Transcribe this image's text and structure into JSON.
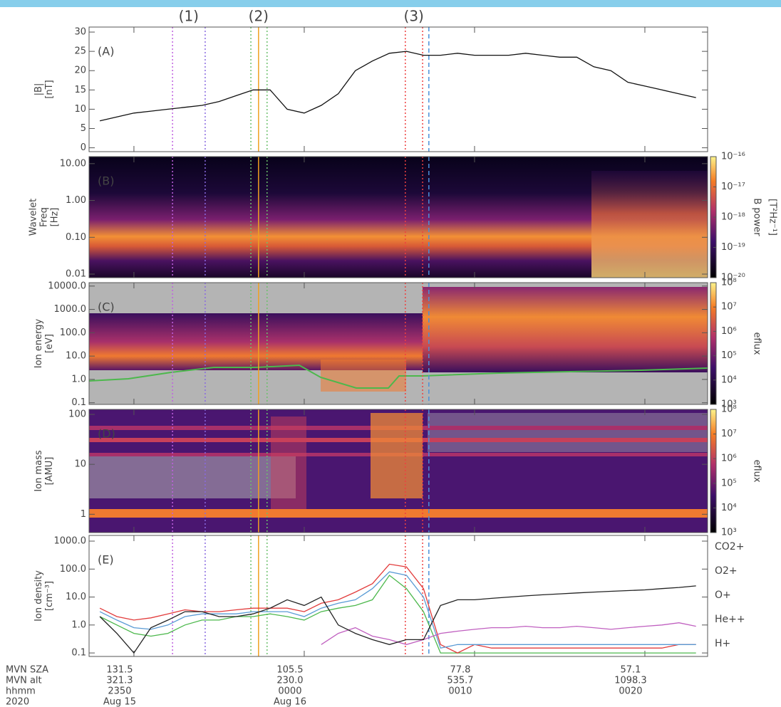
{
  "time_axis": {
    "xlim": [
      "2020-08-15T23:47:22",
      "2020-08-16T00:23:41"
    ],
    "row_labels": [
      "MVN SZA",
      "MVN alt",
      "hhmm",
      "2020"
    ],
    "xticks": [
      {
        "value": "2020-08-15T23:50",
        "sza": "131.5",
        "alt": "321.3",
        "hhmm": "2350",
        "date": "Aug 15"
      },
      {
        "value": "2020-08-16T00:00",
        "sza": "105.5",
        "alt": "230.0",
        "hhmm": "0000",
        "date": "Aug 16"
      },
      {
        "value": "2020-08-16T00:10",
        "sza": "77.8",
        "alt": "535.7",
        "hhmm": "0010"
      },
      {
        "value": "2020-08-16T00:20",
        "sza": "57.1",
        "alt": "1098.3",
        "hhmm": "0020"
      }
    ]
  },
  "events": {
    "labels": [
      {
        "label": "(1)",
        "color": "#c77ad8",
        "time": "2020-08-15T23:53:13"
      },
      {
        "label": "(2)",
        "color": "#6cc06c",
        "time": "2020-08-15T23:57:19"
      },
      {
        "label": "(3)",
        "color": "#ee5a5a",
        "time": "2020-08-16T00:06:26"
      }
    ],
    "lines": [
      {
        "time": "2020-08-15T23:52:16",
        "color": "#c060e0",
        "style": "dotted"
      },
      {
        "time": "2020-08-15T23:54:11",
        "color": "#8a6ae0",
        "style": "dotted"
      },
      {
        "time": "2020-08-15T23:56:52",
        "color": "#6cc06c",
        "style": "dotted"
      },
      {
        "time": "2020-08-15T23:57:19",
        "color": "#f0a020",
        "style": "solid"
      },
      {
        "time": "2020-08-15T23:57:49",
        "color": "#6cc06c",
        "style": "dotted"
      },
      {
        "time": "2020-08-16T00:05:56",
        "color": "#ee4040",
        "style": "dotted"
      },
      {
        "time": "2020-08-16T00:06:57",
        "color": "#ee4040",
        "style": "dotted"
      },
      {
        "time": "2020-08-16T00:07:19",
        "color": "#4a90d9",
        "style": "dashed"
      }
    ]
  },
  "chart_data": [
    {
      "type": "line",
      "panel": "(A)",
      "ylabel": [
        "|B|",
        "[nT]"
      ],
      "ylim": [
        -1,
        31.3
      ],
      "yticks": [
        0,
        5,
        10,
        15,
        20,
        25,
        30
      ],
      "log": false,
      "x": [
        "2020-08-15T23:48",
        "2020-08-15T23:49",
        "2020-08-15T23:50",
        "2020-08-15T23:51",
        "2020-08-15T23:52",
        "2020-08-15T23:53",
        "2020-08-15T23:54",
        "2020-08-15T23:55",
        "2020-08-15T23:56",
        "2020-08-15T23:57",
        "2020-08-15T23:58",
        "2020-08-15T23:59",
        "2020-08-16T00:00",
        "2020-08-16T00:01",
        "2020-08-16T00:02",
        "2020-08-16T00:03",
        "2020-08-16T00:04",
        "2020-08-16T00:05",
        "2020-08-16T00:06",
        "2020-08-16T00:07",
        "2020-08-16T00:08",
        "2020-08-16T00:09",
        "2020-08-16T00:10",
        "2020-08-16T00:11",
        "2020-08-16T00:12",
        "2020-08-16T00:13",
        "2020-08-16T00:14",
        "2020-08-16T00:15",
        "2020-08-16T00:16",
        "2020-08-16T00:17",
        "2020-08-16T00:18",
        "2020-08-16T00:19",
        "2020-08-16T00:20",
        "2020-08-16T00:21",
        "2020-08-16T00:22",
        "2020-08-16T00:23"
      ],
      "series": [
        {
          "color": "#111111",
          "values": [
            7,
            8,
            9,
            9.5,
            10,
            10.5,
            11,
            12,
            13.5,
            15,
            15,
            10,
            9,
            11,
            14,
            20,
            22.5,
            24.5,
            25,
            24,
            24,
            24.5,
            24,
            24,
            24,
            24.5,
            24,
            23.5,
            23.5,
            21,
            20,
            17,
            16,
            15,
            14,
            13
          ]
        }
      ]
    },
    {
      "type": "spectrogram",
      "panel": "(B)",
      "ylabel": [
        "Wavelet",
        "Freq",
        "[Hz]"
      ],
      "ylim": [
        0.008,
        15.5
      ],
      "log": true,
      "yticks": [
        {
          "value": 10,
          "label": "10.00"
        },
        {
          "value": 1,
          "label": "1.00"
        },
        {
          "value": 0.1,
          "label": "0.10"
        },
        {
          "value": 0.01,
          "label": "0.01"
        }
      ],
      "colorbar": {
        "label": [
          "B power",
          "[T²Hz⁻¹]"
        ],
        "lim": [
          1e-20,
          1e-16
        ],
        "ticks": [
          {
            "value": 1e-16,
            "label": "10⁻¹⁶"
          },
          {
            "value": 1e-17,
            "label": "10⁻¹⁷"
          },
          {
            "value": 1e-18,
            "label": "10⁻¹⁸"
          },
          {
            "value": 1e-19,
            "label": "10⁻¹⁹"
          },
          {
            "value": 1e-20,
            "label": "10⁻²⁰"
          }
        ]
      }
    },
    {
      "type": "spectrogram",
      "panel": "(C)",
      "ylabel": [
        "Ion energy",
        "[eV]"
      ],
      "ylim": [
        0.085,
        14000
      ],
      "log": true,
      "yticks": [
        {
          "value": 10000,
          "label": "10000.0"
        },
        {
          "value": 1000,
          "label": "1000.0"
        },
        {
          "value": 100,
          "label": "100.0"
        },
        {
          "value": 10,
          "label": "10.0"
        },
        {
          "value": 1,
          "label": "1.0"
        },
        {
          "value": 0.1,
          "label": "0.1"
        }
      ],
      "colorbar": {
        "label": [
          "eflux"
        ],
        "lim": [
          1000,
          100000000
        ],
        "ticks": [
          {
            "value": 100000000,
            "label": "10⁸"
          },
          {
            "value": 10000000,
            "label": "10⁷"
          },
          {
            "value": 1000000,
            "label": "10⁶"
          },
          {
            "value": 100000,
            "label": "10⁵"
          },
          {
            "value": 10000,
            "label": "10⁴"
          },
          {
            "value": 1000,
            "label": "10³"
          }
        ]
      }
    },
    {
      "type": "spectrogram",
      "panel": "(D)",
      "ylabel": [
        "Ion mass",
        "[AMU]"
      ],
      "ylim": [
        0.43,
        126
      ],
      "log": true,
      "yticks": [
        100,
        10,
        1
      ],
      "colorbar": {
        "label": [
          "eflux"
        ],
        "lim": [
          1000,
          100000000
        ],
        "ticks": [
          {
            "value": 100000000,
            "label": "10⁸"
          },
          {
            "value": 10000000,
            "label": "10⁷"
          },
          {
            "value": 1000000,
            "label": "10⁶"
          },
          {
            "value": 100000,
            "label": "10⁵"
          },
          {
            "value": 10000,
            "label": "10⁴"
          },
          {
            "value": 1000,
            "label": "10³"
          }
        ]
      }
    },
    {
      "type": "line",
      "panel": "(E)",
      "ylabel": [
        "Ion density",
        "[cm⁻³]"
      ],
      "ylim": [
        0.075,
        1600
      ],
      "log": true,
      "yticks": [
        {
          "value": 1000,
          "label": "1000.0"
        },
        {
          "value": 100,
          "label": "100.0"
        },
        {
          "value": 10,
          "label": "10.0"
        },
        {
          "value": 1,
          "label": "1.0"
        },
        {
          "value": 0.1,
          "label": "0.1"
        }
      ],
      "x": [
        "2020-08-15T23:48",
        "2020-08-15T23:49",
        "2020-08-15T23:50",
        "2020-08-15T23:51",
        "2020-08-15T23:52",
        "2020-08-15T23:53",
        "2020-08-15T23:54",
        "2020-08-15T23:55",
        "2020-08-15T23:56",
        "2020-08-15T23:57",
        "2020-08-15T23:58",
        "2020-08-15T23:59",
        "2020-08-16T00:00",
        "2020-08-16T00:01",
        "2020-08-16T00:02",
        "2020-08-16T00:03",
        "2020-08-16T00:04",
        "2020-08-16T00:05",
        "2020-08-16T00:06",
        "2020-08-16T00:07",
        "2020-08-16T00:08",
        "2020-08-16T00:09",
        "2020-08-16T00:10",
        "2020-08-16T00:11",
        "2020-08-16T00:12",
        "2020-08-16T00:13",
        "2020-08-16T00:14",
        "2020-08-16T00:15",
        "2020-08-16T00:16",
        "2020-08-16T00:17",
        "2020-08-16T00:18",
        "2020-08-16T00:19",
        "2020-08-16T00:20",
        "2020-08-16T00:21",
        "2020-08-16T00:22",
        "2020-08-16T00:23"
      ],
      "series": [
        {
          "name": "CO2+",
          "color": "#4cb84c",
          "values": [
            2,
            1,
            0.5,
            0.4,
            0.5,
            1,
            1.5,
            1.5,
            2,
            2,
            2.5,
            2,
            1.5,
            3,
            4,
            5,
            8,
            60,
            20,
            3,
            0.1,
            0.1,
            0.1,
            0.1,
            0.1,
            0.1,
            0.1,
            0.1,
            0.1,
            0.1,
            0.1,
            0.1,
            0.1,
            0.1,
            0.1,
            0.1
          ]
        },
        {
          "name": "O2+",
          "color": "#e23b3b",
          "values": [
            4,
            2,
            1.5,
            1.8,
            2.5,
            3.5,
            3,
            3,
            3.5,
            4,
            4,
            4,
            3,
            6,
            8,
            15,
            30,
            150,
            120,
            20,
            0.2,
            0.1,
            0.2,
            0.15,
            0.15,
            0.15,
            0.15,
            0.15,
            0.15,
            0.15,
            0.15,
            0.15,
            0.15,
            0.15,
            0.2,
            0.2
          ]
        },
        {
          "name": "O+",
          "color": "#5a9bd5",
          "values": [
            3,
            1.5,
            0.8,
            0.7,
            1,
            2,
            2.5,
            2.5,
            2.5,
            3,
            3,
            3,
            2,
            4,
            6,
            8,
            20,
            80,
            60,
            10,
            0.15,
            0.2,
            0.2,
            0.2,
            0.2,
            0.2,
            0.2,
            0.2,
            0.2,
            0.2,
            0.2,
            0.2,
            0.2,
            0.2,
            0.2,
            0.2
          ]
        },
        {
          "name": "He++",
          "color": "#c060c0",
          "values": [
            null,
            null,
            null,
            null,
            null,
            null,
            null,
            null,
            null,
            null,
            null,
            null,
            null,
            0.2,
            0.5,
            0.8,
            0.4,
            0.3,
            0.2,
            0.3,
            0.5,
            0.6,
            0.7,
            0.8,
            0.8,
            0.9,
            0.8,
            0.8,
            0.9,
            0.8,
            0.7,
            0.8,
            0.9,
            1.0,
            1.2,
            0.9
          ]
        },
        {
          "name": "H+",
          "color": "#222222",
          "values": [
            2,
            0.5,
            0.1,
            0.8,
            1.5,
            3,
            3,
            2,
            2,
            2.5,
            4,
            8,
            5,
            10,
            1,
            0.5,
            0.3,
            0.2,
            0.3,
            0.3,
            5,
            8,
            8,
            9,
            10,
            11,
            12,
            13,
            14,
            15,
            16,
            17,
            18,
            20,
            22,
            25
          ]
        }
      ]
    }
  ]
}
